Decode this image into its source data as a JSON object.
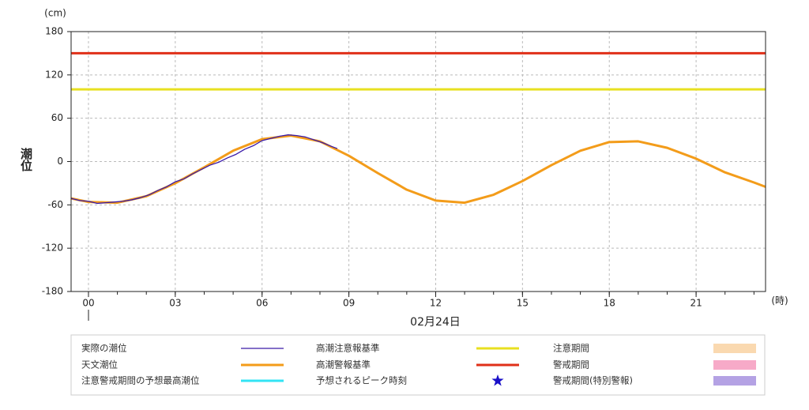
{
  "chart_data": {
    "type": "line",
    "y_label": "潮位",
    "y_unit": "(cm)",
    "x_unit": "(時)",
    "date_label": "02月24日",
    "xlim": [
      -0.6,
      23.4
    ],
    "ylim": [
      -180,
      180
    ],
    "xticks": [
      {
        "value": 0,
        "label": "00"
      },
      {
        "value": 3,
        "label": "03"
      },
      {
        "value": 6,
        "label": "06"
      },
      {
        "value": 9,
        "label": "09"
      },
      {
        "value": 12,
        "label": "12"
      },
      {
        "value": 15,
        "label": "15"
      },
      {
        "value": 18,
        "label": "18"
      },
      {
        "value": 21,
        "label": "21"
      }
    ],
    "xminor_step": 1,
    "yticks": [
      -180,
      -120,
      -60,
      0,
      60,
      120,
      180
    ],
    "grid": true,
    "series": [
      {
        "name": "実際の潮位",
        "color": "#3a1aa8",
        "width": 1.3,
        "x": [
          -0.6,
          -0.3,
          0,
          0.3,
          0.6,
          0.9,
          1.2,
          1.5,
          1.8,
          2.1,
          2.4,
          2.7,
          3,
          3.3,
          3.6,
          3.9,
          4.2,
          4.5,
          4.8,
          5.1,
          5.4,
          5.7,
          6,
          6.3,
          6.6,
          6.9,
          7.2,
          7.5,
          7.8,
          8.1,
          8.4,
          8.6
        ],
        "values": [
          -51,
          -54,
          -55,
          -58,
          -57,
          -56,
          -55,
          -53,
          -50,
          -46,
          -40,
          -35,
          -28,
          -24,
          -17,
          -11,
          -5,
          -1,
          5,
          10,
          17,
          22,
          29,
          32,
          35,
          37,
          36,
          34,
          30,
          26,
          21,
          18
        ]
      },
      {
        "name": "天文潮位",
        "color": "#f39c1a",
        "width": 3,
        "x": [
          -0.6,
          0,
          1,
          2,
          3,
          4,
          5,
          6,
          7,
          8,
          9,
          10,
          11,
          12,
          13,
          14,
          15,
          16,
          17,
          18,
          19,
          20,
          21,
          22,
          23,
          23.4
        ],
        "values": [
          -51,
          -56,
          -57,
          -48,
          -30,
          -8,
          15,
          31,
          36,
          28,
          8,
          -16,
          -39,
          -54,
          -57,
          -46,
          -27,
          -5,
          15,
          27,
          28,
          19,
          4,
          -15,
          -29,
          -35
        ]
      }
    ],
    "thresholds": [
      {
        "name": "高潮注意報基準",
        "color": "#e8e020",
        "value": 100
      },
      {
        "name": "高潮警報基準",
        "color": "#e03018",
        "value": 150
      }
    ],
    "legend_extra": [
      {
        "name": "注意警戒期間の予想最高潮位",
        "color": "#33e4f4",
        "symbol": "line"
      },
      {
        "name": "予想されるピーク時刻",
        "color": "#1a10c8",
        "symbol": "star"
      },
      {
        "name": "注意期間",
        "color": "#fad9b0",
        "symbol": "box"
      },
      {
        "name": "警戒期間",
        "color": "#f7aac8",
        "symbol": "box"
      },
      {
        "name": "警戒期間(特別警報)",
        "color": "#b4a2e4",
        "symbol": "box"
      }
    ]
  }
}
